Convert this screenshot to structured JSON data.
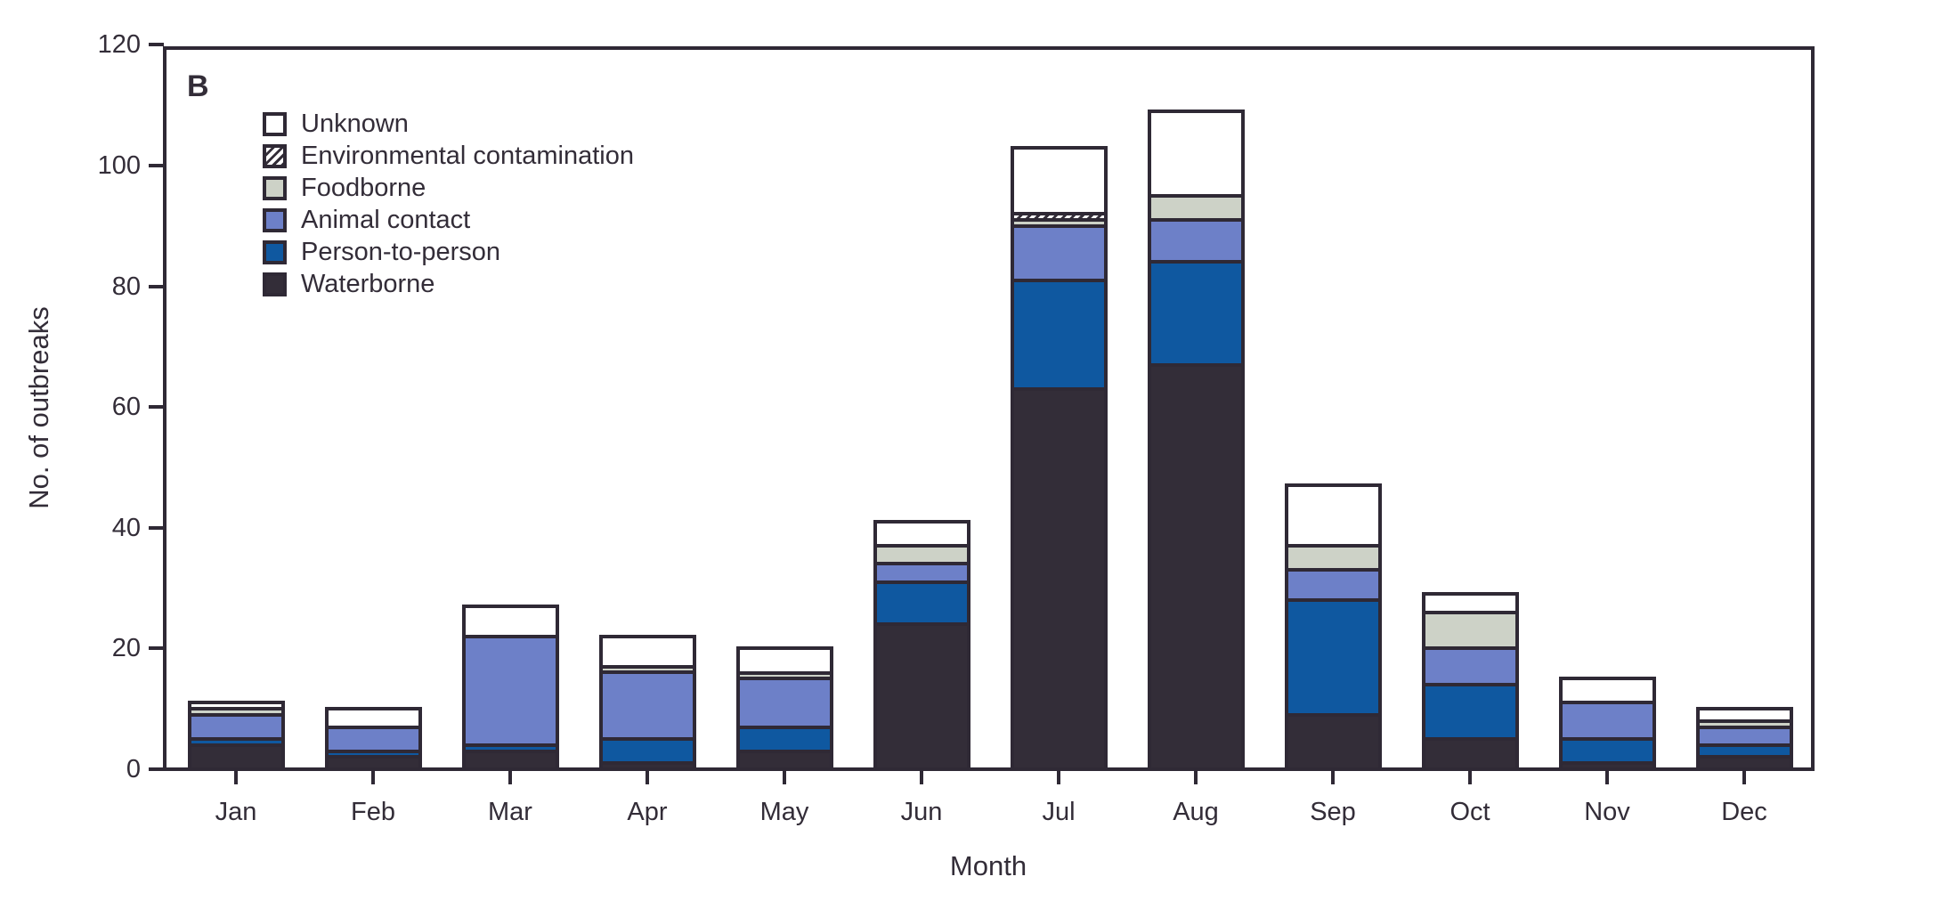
{
  "chart_data": {
    "type": "bar",
    "variant": "stacked-vertical",
    "panel_label": "B",
    "xlabel": "Month",
    "ylabel": "No. of outbreaks",
    "ylim": [
      0,
      120
    ],
    "yticks": [
      0,
      20,
      40,
      60,
      80,
      100,
      120
    ],
    "grid": "off",
    "legend_position": "top-left-inside",
    "categories": [
      "Jan",
      "Feb",
      "Mar",
      "Apr",
      "May",
      "Jun",
      "Jul",
      "Aug",
      "Sep",
      "Oct",
      "Nov",
      "Dec"
    ],
    "legend_order_top_to_bottom": [
      "Unknown",
      "Environmental contamination",
      "Foodborne",
      "Animal contact",
      "Person-to-person",
      "Waterborne"
    ],
    "series": [
      {
        "name": "Waterborne",
        "color": "#332d38",
        "values": [
          4,
          2,
          3,
          1,
          3,
          24,
          63,
          67,
          9,
          5,
          1,
          2
        ]
      },
      {
        "name": "Person-to-person",
        "color": "#0f58a0",
        "values": [
          1,
          1,
          1,
          4,
          4,
          7,
          18,
          17,
          19,
          9,
          4,
          2
        ]
      },
      {
        "name": "Animal contact",
        "color": "#6d80c8",
        "values": [
          4,
          4,
          18,
          11,
          8,
          3,
          9,
          7,
          5,
          6,
          6,
          3
        ]
      },
      {
        "name": "Foodborne",
        "color": "#cdd2c7",
        "values": [
          1,
          0,
          0,
          1,
          1,
          3,
          1,
          4,
          4,
          6,
          0,
          1
        ]
      },
      {
        "name": "Environmental contamination",
        "color": "#332d38",
        "pattern": "diagonal-hatch",
        "pattern_bg": "#ffffff",
        "values": [
          0,
          0,
          0,
          0,
          0,
          0,
          1,
          0,
          0,
          0,
          0,
          0
        ]
      },
      {
        "name": "Unknown",
        "color": "#ffffff",
        "values": [
          1,
          3,
          5,
          5,
          4,
          4,
          11,
          14,
          10,
          3,
          4,
          2
        ]
      }
    ],
    "stack_order_bottom_to_top": [
      "Waterborne",
      "Person-to-person",
      "Animal contact",
      "Foodborne",
      "Environmental contamination",
      "Unknown"
    ],
    "monthly_totals": [
      11,
      10,
      27,
      22,
      20,
      41,
      103,
      109,
      47,
      29,
      15,
      10
    ],
    "colors": {
      "plot_border": "#2f2935",
      "text": "#332d38",
      "background": "#ffffff"
    }
  }
}
